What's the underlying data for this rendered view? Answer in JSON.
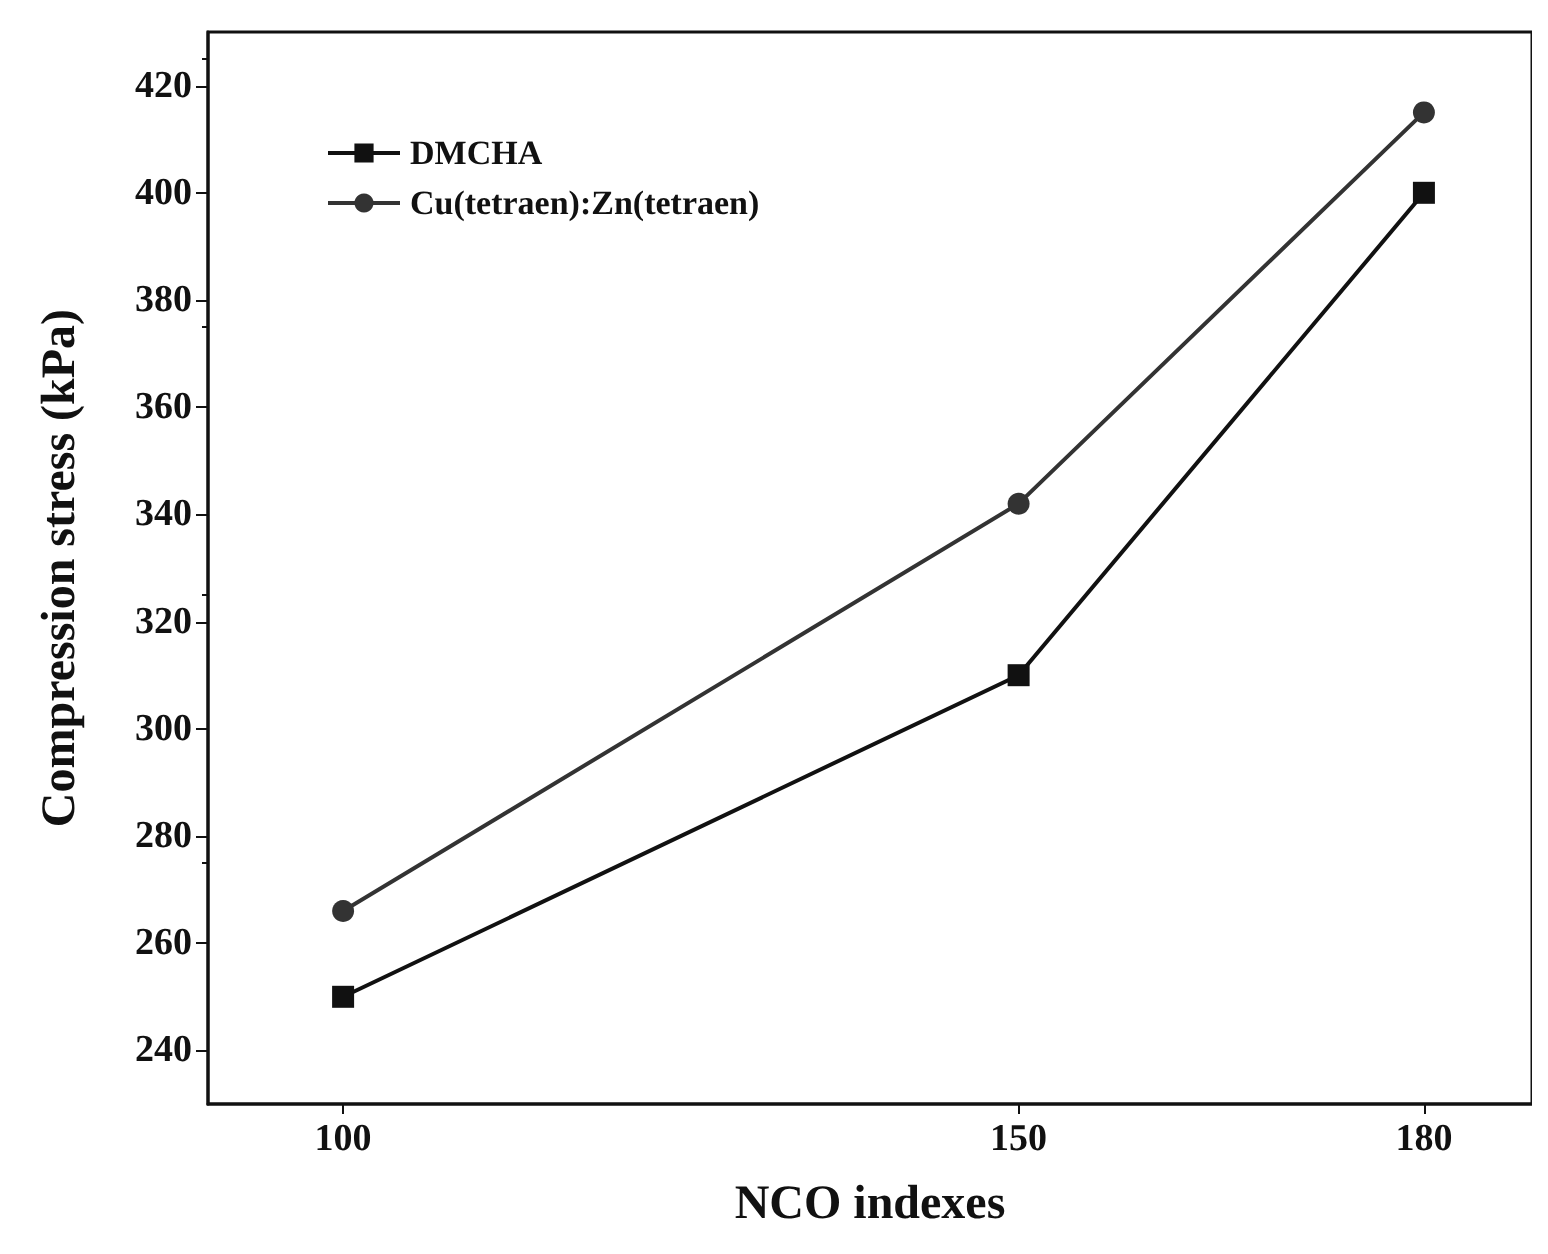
{
  "chart_data": {
    "type": "line",
    "xlabel": "NCO indexes",
    "ylabel": "Compression stress (kPa)",
    "x": [
      100,
      150,
      180
    ],
    "series": [
      {
        "name": "DMCHA",
        "color": "#111111",
        "marker": "square",
        "values": [
          250,
          310,
          400
        ]
      },
      {
        "name": "Cu(tetraen):Zn(tetraen)",
        "color": "#333333",
        "marker": "circle",
        "values": [
          266,
          342,
          415
        ]
      }
    ],
    "xlim": [
      90,
      188
    ],
    "xticks": [
      100,
      150,
      180
    ],
    "ylim": [
      230,
      430
    ],
    "yticks": [
      240,
      260,
      280,
      300,
      320,
      340,
      360,
      380,
      400,
      420
    ],
    "grid": false,
    "legend": "top left",
    "line_style": "solid"
  }
}
